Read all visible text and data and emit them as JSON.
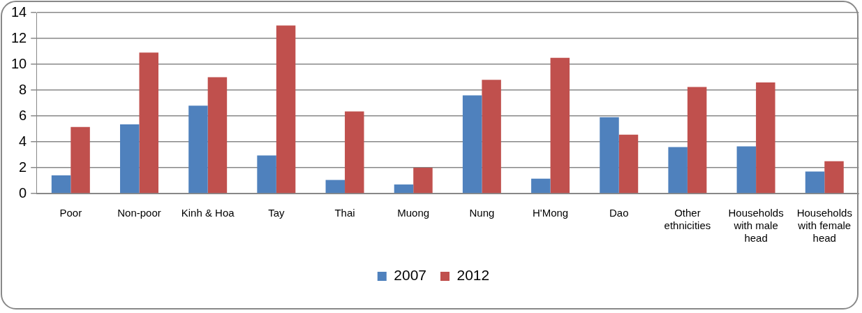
{
  "chart_data": {
    "type": "bar",
    "categories": [
      "Poor",
      "Non-poor",
      "Kinh & Hoa",
      "Tay",
      "Thai",
      "Muong",
      "Nung",
      "H'Mong",
      "Dao",
      "Other ethnicities",
      "Households with male head",
      "Households with female head"
    ],
    "series": [
      {
        "name": "2007",
        "color": "#4f81bd",
        "values": [
          1.4,
          5.35,
          6.8,
          2.95,
          1.05,
          0.7,
          7.6,
          1.15,
          5.9,
          3.6,
          3.65,
          1.7
        ]
      },
      {
        "name": "2012",
        "color": "#c0504d",
        "values": [
          5.15,
          10.9,
          9.0,
          13.0,
          6.35,
          2.0,
          8.8,
          10.5,
          4.55,
          8.25,
          8.6,
          2.5
        ]
      }
    ],
    "ylim": [
      0,
      14
    ],
    "yticks": [
      0,
      2,
      4,
      6,
      8,
      10,
      12,
      14
    ],
    "grid": "y",
    "legend": "bottom"
  }
}
